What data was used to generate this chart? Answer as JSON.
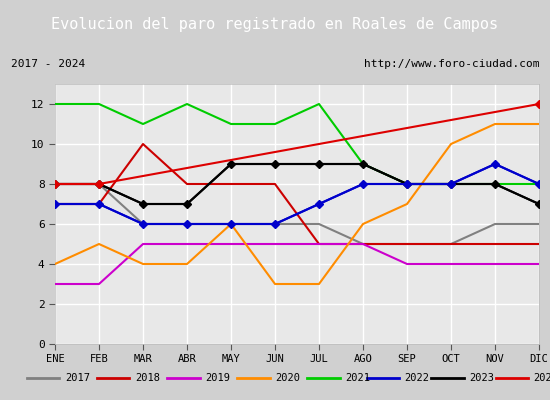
{
  "title": "Evolucion del paro registrado en Roales de Campos",
  "subtitle_left": "2017 - 2024",
  "subtitle_right": "http://www.foro-ciudad.com",
  "xlabel_months": [
    "ENE",
    "FEB",
    "MAR",
    "ABR",
    "MAY",
    "JUN",
    "JUL",
    "AGO",
    "SEP",
    "OCT",
    "NOV",
    "DIC"
  ],
  "ylim": [
    0,
    13
  ],
  "yticks": [
    0,
    2,
    4,
    6,
    8,
    10,
    12
  ],
  "series": {
    "2017": {
      "color": "#808080",
      "values": [
        8,
        8,
        6,
        6,
        6,
        6,
        6,
        5,
        5,
        5,
        6,
        6
      ]
    },
    "2018": {
      "color": "#cc0000",
      "values": [
        7,
        7,
        10,
        8,
        8,
        8,
        5,
        5,
        5,
        5,
        5,
        5
      ]
    },
    "2019": {
      "color": "#cc00cc",
      "values": [
        3,
        3,
        5,
        5,
        5,
        5,
        5,
        5,
        4,
        4,
        4,
        4
      ]
    },
    "2020": {
      "color": "#ff8c00",
      "values": [
        4,
        5,
        4,
        4,
        6,
        3,
        3,
        6,
        7,
        10,
        11,
        11
      ]
    },
    "2021": {
      "color": "#00cc00",
      "values": [
        12,
        12,
        11,
        12,
        11,
        11,
        12,
        9,
        8,
        8,
        8,
        8
      ]
    },
    "2022": {
      "color": "#0000cc",
      "values": [
        7,
        7,
        6,
        6,
        6,
        6,
        7,
        8,
        8,
        8,
        9,
        8
      ]
    },
    "2023": {
      "color": "#000000",
      "values": [
        8,
        8,
        7,
        7,
        9,
        9,
        9,
        9,
        8,
        8,
        8,
        7
      ]
    },
    "2024": {
      "color": "#dd0000",
      "values": [
        8,
        8,
        null,
        null,
        null,
        null,
        null,
        null,
        null,
        null,
        null,
        12
      ]
    }
  },
  "title_bg": "#4a90d9",
  "title_color": "#ffffff",
  "plot_bg": "#e8e8e8",
  "grid_color": "#ffffff",
  "subtitle_box_color": "#ffffff",
  "subtitle_border_color": "#000000"
}
